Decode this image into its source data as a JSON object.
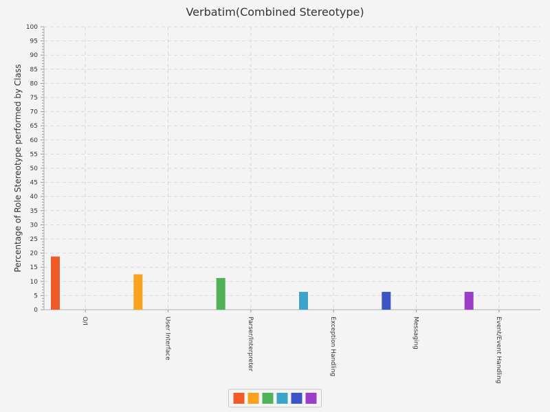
{
  "chart_data": {
    "type": "bar",
    "title": "Verbatim(Combined Stereotype)",
    "xlabel": "",
    "ylabel": "Percentage of Role Stereotype performed by Class",
    "ylim": [
      0,
      100
    ],
    "ytick_step": 5,
    "categories": [
      "O/I",
      "User Interface",
      "Parser/Interpreter",
      "Exception Handling",
      "Messaging",
      "Event/Event Handling"
    ],
    "values": [
      18.8,
      12.5,
      11.2,
      6.3,
      6.3,
      6.3
    ],
    "colors": [
      "#f05a28",
      "#f9a21b",
      "#52b057",
      "#3ba4c8",
      "#3c55c4",
      "#9b3dc9"
    ],
    "grid": true,
    "legend": "bottom"
  }
}
